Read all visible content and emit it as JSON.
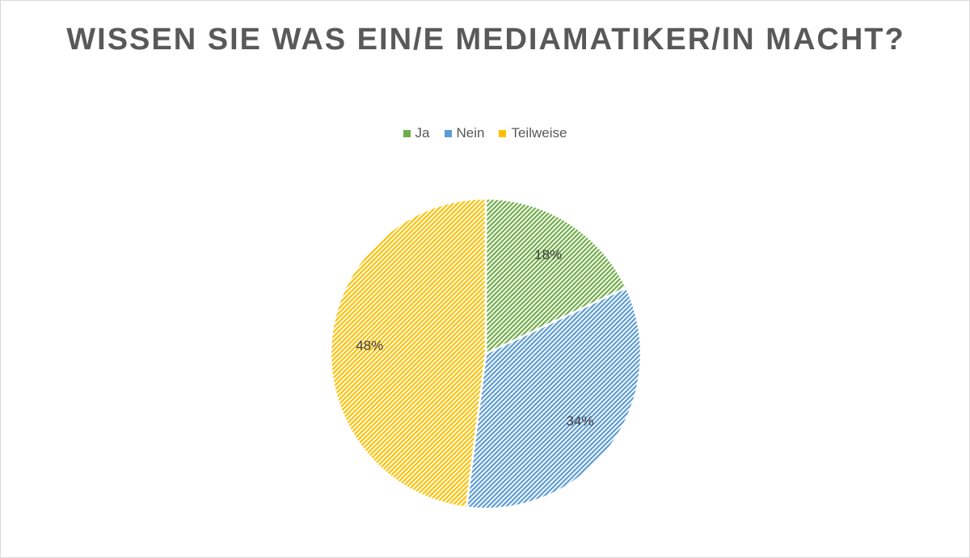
{
  "chart_data": {
    "type": "pie",
    "title": "WISSEN SIE WAS EIN/E MEDIAMATIKER/IN MACHT?",
    "categories": [
      "Ja",
      "Nein",
      "Teilweise"
    ],
    "values": [
      18,
      34,
      48
    ],
    "value_labels": [
      "18%",
      "34%",
      "48%"
    ],
    "colors": [
      "#70ad47",
      "#5b9bd5",
      "#ffc000"
    ],
    "legend": "top"
  }
}
